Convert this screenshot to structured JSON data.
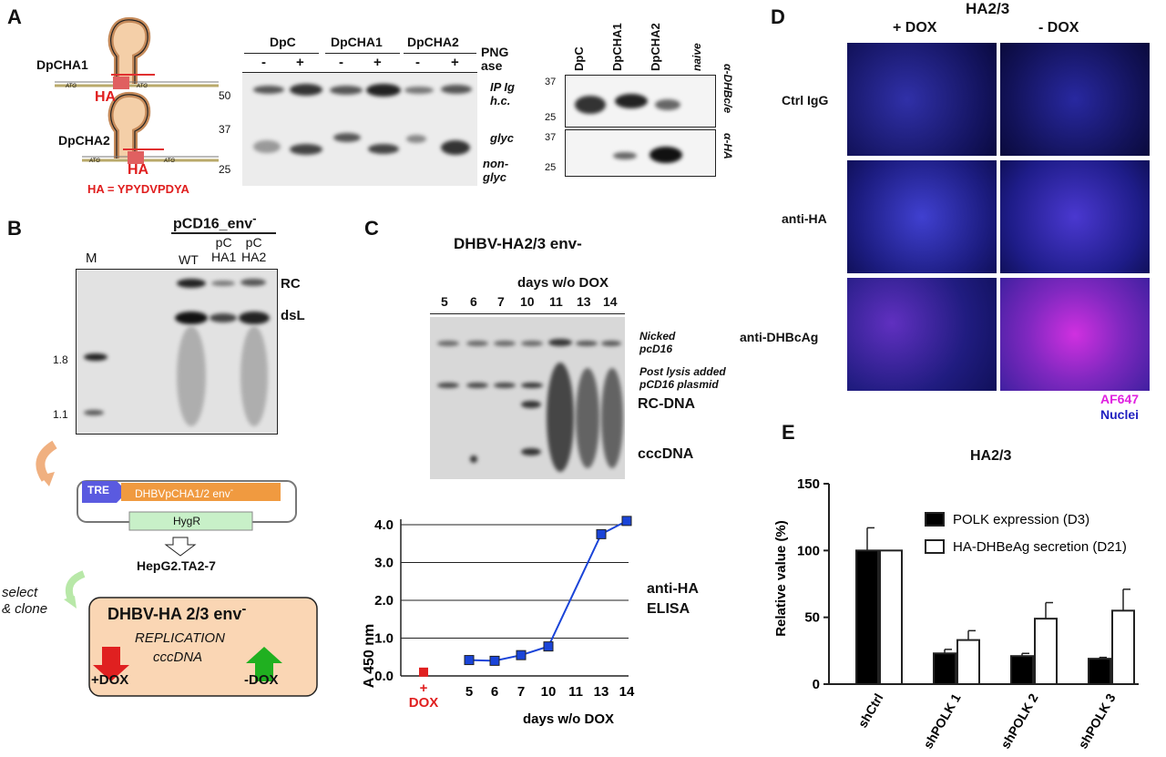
{
  "panelA": {
    "letter": "A",
    "construct1": "DpCHA1",
    "construct2": "DpCHA2",
    "ha_tag": "HA",
    "ha_seq": "HA = YPYDVPDYA",
    "atg": "ATG",
    "blot1_cols": [
      "DpC",
      "DpCHA1",
      "DpCHA2"
    ],
    "blot1_signs": [
      "-",
      "+",
      "-",
      "+",
      "-",
      "+"
    ],
    "png_label_1": "PNG",
    "png_label_2": "ase",
    "mw_50": "50",
    "mw_37": "37",
    "mw_25": "25",
    "ip_1": "IP Ig",
    "ip_2": "h.c.",
    "glyc": "glyc",
    "nonglyc_1": "non-",
    "nonglyc_2": "glyc",
    "blot2_cols": [
      "DpC",
      "DpCHA1",
      "DpCHA2",
      "naive"
    ],
    "blot2_mw_37a": "37",
    "blot2_mw_25a": "25",
    "blot2_mw_37b": "37",
    "blot2_mw_25b": "25",
    "ab1": "α-DHBc/e",
    "ab2": "α-HA"
  },
  "panelB": {
    "letter": "B",
    "header": "pCD16_env",
    "header_sup": "-",
    "lanes": [
      "M",
      "WT",
      "pC\nHA1",
      "pC\nHA2"
    ],
    "lane_m": "M",
    "lane_wt": "WT",
    "lane_ha1_1": "pC",
    "lane_ha1_2": "HA1",
    "lane_ha2_1": "pC",
    "lane_ha2_2": "HA2",
    "rc": "RC",
    "dsl": "dsL",
    "mw_18": "1.8",
    "mw_11": "1.1",
    "tre": "TRE",
    "orf": "DHBVpCHA1/2 env",
    "orf_sup": "-",
    "hygr": "HygR",
    "cell": "HepG2.TA2-7",
    "select_1": "select",
    "select_2": "& clone",
    "box_title": "DHBV-HA 2/3 env",
    "box_title_sup": "-",
    "replication": "REPLICATION",
    "cccdna": "cccDNA",
    "plus_dox": "+DOX",
    "minus_dox": "-DOX"
  },
  "panelC": {
    "letter": "C",
    "title": "DHBV-HA2/3 env-",
    "days_label": "days w/o DOX",
    "days": [
      "5",
      "6",
      "7",
      "10",
      "11",
      "13",
      "14"
    ],
    "nicked_1": "Nicked",
    "nicked_2": "pcD16",
    "post_1": "Post lysis added",
    "post_2": "pCD16 plasmid",
    "rcdna": "RC-DNA",
    "cccdna": "cccDNA",
    "elisa_1": "anti-HA",
    "elisa_2": "ELISA",
    "ylabel": "A 450 nm",
    "xlabel": "days w/o DOX",
    "dox_plus": "+",
    "dox_label": "DOX"
  },
  "panelD": {
    "letter": "D",
    "title": "HA2/3",
    "col1": "+ DOX",
    "col2": "- DOX",
    "row1": "Ctrl IgG",
    "row2": "anti-HA",
    "row3": "anti-DHBcAg",
    "legend1": "AF647",
    "legend2": "Nuclei",
    "color_af647": "#e020e0",
    "color_nuclei": "#2020c0"
  },
  "panelE": {
    "letter": "E",
    "title": "HA2/3"
  },
  "chart_data": [
    {
      "type": "line",
      "title": "",
      "xlabel": "days w/o DOX",
      "ylabel": "A 450 nm",
      "x": [
        "+ DOX",
        "5",
        "6",
        "7",
        "10",
        "11",
        "13",
        "14"
      ],
      "ylim": [
        0,
        4.0
      ],
      "yticks": [
        "0.0",
        "1.0",
        "2.0",
        "3.0",
        "4.0"
      ],
      "series": [
        {
          "values": [
            0.1,
            0.42,
            0.4,
            0.55,
            0.78,
            null,
            3.75,
            4.1
          ]
        }
      ],
      "grid": true
    },
    {
      "type": "bar",
      "title": "HA2/3",
      "xlabel": "",
      "ylabel": "Relative value (%)",
      "ylim": [
        0,
        150
      ],
      "yticks": [
        "0",
        "50",
        "100",
        "150"
      ],
      "categories": [
        "shCtrl",
        "shPOLK 1",
        "shPOLK 2",
        "shPOLK 3"
      ],
      "series": [
        {
          "name": "POLK expression (D3)",
          "values": [
            100,
            23,
            21,
            19
          ],
          "errors": [
            17,
            3,
            2,
            1
          ],
          "color": "#000000"
        },
        {
          "name": "HA-DHBeAg secretion (D21)",
          "values": [
            100,
            33,
            49,
            55
          ],
          "errors": [
            0,
            7,
            12,
            16
          ],
          "color": "#ffffff"
        }
      ],
      "legend": "top-right"
    }
  ]
}
